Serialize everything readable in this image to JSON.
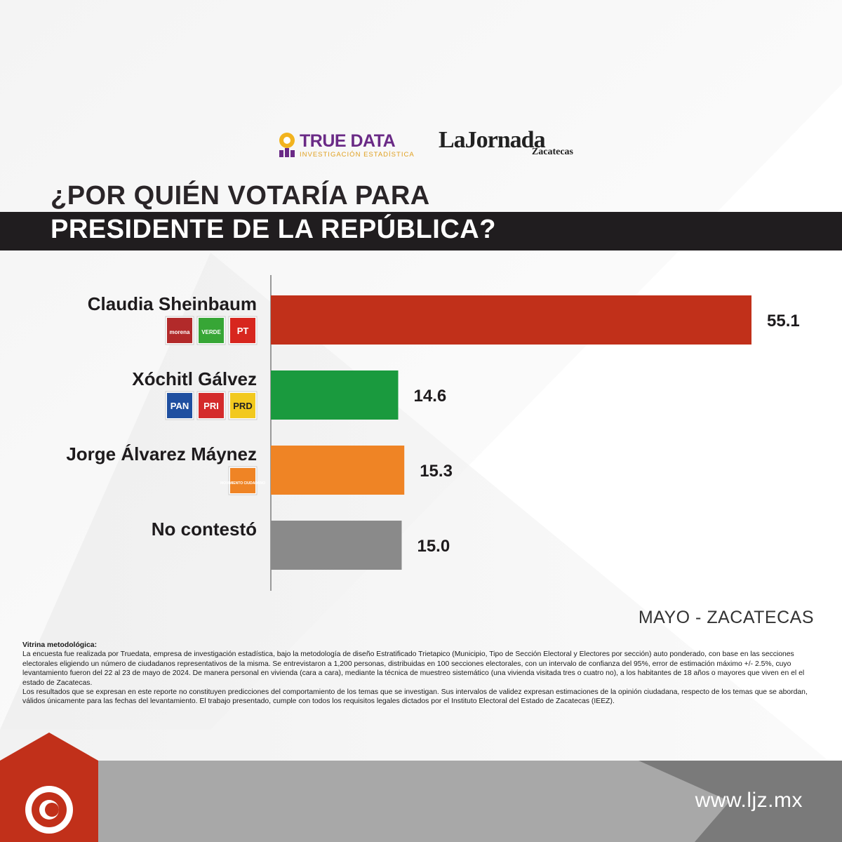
{
  "brand": {
    "truedata_name": "TRUE DATA",
    "truedata_tagline": "INVESTIGACIÓN ESTADÍSTICA",
    "jornada_name": "LaJornada",
    "jornada_region": "Zacatecas"
  },
  "title": {
    "line1": "¿POR QUIÉN VOTARÍA PARA",
    "line2": "PRESIDENTE DE LA REPÚBLICA?"
  },
  "chart_data": {
    "type": "bar",
    "orientation": "horizontal",
    "categories": [
      "Claudia Sheinbaum",
      "Xóchitl Gálvez",
      "Jorge Álvarez Máynez",
      "No contestó"
    ],
    "values": [
      55.1,
      14.6,
      15.3,
      15.0
    ],
    "value_labels": [
      "55.1",
      "14.6",
      "15.3",
      "15.0"
    ],
    "colors": [
      "#c1301a",
      "#1a9a3e",
      "#ef8425",
      "#8a8a8a"
    ],
    "party_logos": [
      [
        {
          "icon": "morena-logo",
          "text": "morena",
          "color": "#b22a2a"
        },
        {
          "icon": "verde-logo",
          "text": "VERDE",
          "color": "#37a636"
        },
        {
          "icon": "pt-logo",
          "text": "PT",
          "color": "#d7261e"
        }
      ],
      [
        {
          "icon": "pan-logo",
          "text": "PAN",
          "color": "#1f4fa0"
        },
        {
          "icon": "pri-logo",
          "text": "PRI",
          "color": "#d42b2b"
        },
        {
          "icon": "prd-logo",
          "text": "PRD",
          "color": "#f2c91e"
        }
      ],
      [
        {
          "icon": "movimiento-ciudadano-logo",
          "text": "MOVIMIENTO CIUDADANO",
          "color": "#ef8425"
        }
      ],
      []
    ],
    "xlim": [
      0,
      60
    ],
    "grid": false,
    "legend": "none"
  },
  "period": "MAYO - ZACATECAS",
  "methodology": {
    "title": "Vitrina metodológica:",
    "paragraph1": "La encuesta fue realizada por Truedata, empresa de investigación estadística, bajo la metodología de diseño Estratificado Trietapico (Municipio, Tipo de Sección Electoral y Electores por sección) auto ponderado, con base en las secciones electorales eligiendo un número de ciudadanos representativos de la misma. Se entrevistaron a 1,200 personas, distribuidas en 100 secciones electorales, con un intervalo de confianza del 95%, error de estimación máximo +/- 2.5%, cuyo levantamiento fueron del 22 al 23 de mayo de 2024. De manera personal en vivienda (cara a cara), mediante la técnica de muestreo sistemático (una vivienda visitada tres o cuatro no), a los habitantes de 18 años o mayores que viven en el el estado de Zacatecas.",
    "paragraph2": "Los resultados que se expresan en este reporte no constituyen predicciones del comportamiento de los temas que se investigan. Sus intervalos de validez expresan estimaciones de la opinión ciudadana, respecto de los temas que se abordan, válidos únicamente para las fechas del levantamiento. El trabajo presentado, cumple con todos los requisitos legales dictados por el Instituto Electoral del Estado de Zacatecas (IEEZ)."
  },
  "footer": {
    "url": "www.ljz.mx",
    "logo_icon": "la-jornada-sun-logo"
  }
}
